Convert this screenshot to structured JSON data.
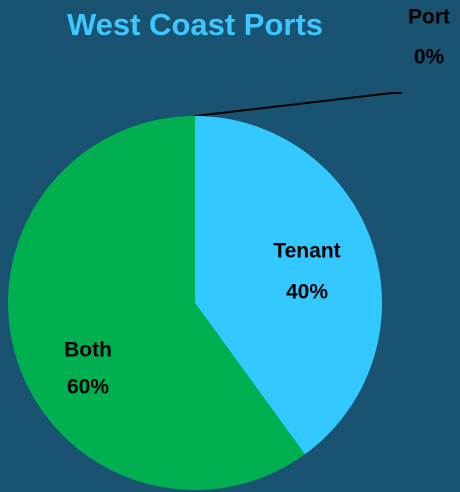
{
  "chart_data": {
    "type": "pie",
    "title": "West Coast Ports",
    "categories": [
      "Port",
      "Tenant",
      "Both"
    ],
    "values": [
      0,
      40,
      60
    ],
    "value_labels": [
      "0%",
      "40%",
      "60%"
    ],
    "colors": [
      "#2f6f94",
      "#33c8ff",
      "#00b050"
    ]
  }
}
